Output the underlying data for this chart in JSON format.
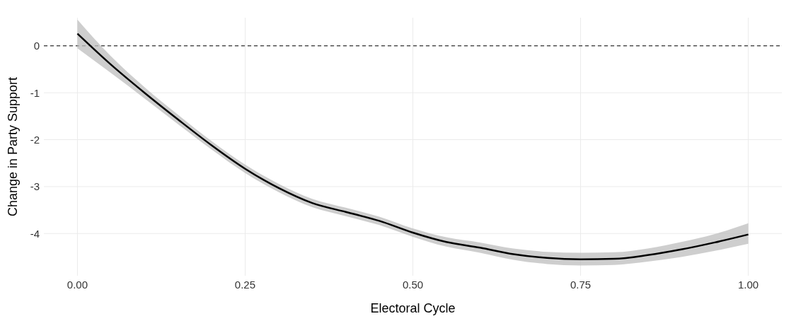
{
  "chart_data": {
    "type": "line",
    "xlabel": "Electoral Cycle",
    "ylabel": "Change in Party Support",
    "x": [
      0,
      0.05,
      0.1,
      0.15,
      0.2,
      0.25,
      0.3,
      0.35,
      0.4,
      0.45,
      0.5,
      0.55,
      0.6,
      0.65,
      0.7,
      0.75,
      0.8,
      0.85,
      0.9,
      0.95,
      1
    ],
    "series": [
      {
        "color": "#000000",
        "values": [
          0.26,
          -0.4,
          -1.0,
          -1.57,
          -2.12,
          -2.62,
          -3.03,
          -3.35,
          -3.54,
          -3.73,
          -3.98,
          -4.18,
          -4.3,
          -4.44,
          -4.52,
          -4.55,
          -4.54,
          -4.46,
          -4.34,
          -4.19,
          -4.02
        ],
        "lower": [
          -0.05,
          -0.58,
          -1.12,
          -1.67,
          -2.21,
          -2.71,
          -3.12,
          -3.44,
          -3.63,
          -3.82,
          -4.07,
          -4.28,
          -4.41,
          -4.56,
          -4.65,
          -4.68,
          -4.67,
          -4.6,
          -4.5,
          -4.37,
          -4.22
        ],
        "upper": [
          0.56,
          -0.22,
          -0.88,
          -1.47,
          -2.03,
          -2.53,
          -2.94,
          -3.26,
          -3.45,
          -3.64,
          -3.89,
          -4.08,
          -4.19,
          -4.32,
          -4.39,
          -4.41,
          -4.4,
          -4.32,
          -4.18,
          -4.01,
          -3.78
        ]
      }
    ],
    "xlim": [
      -0.05,
      1.05
    ],
    "ylim": [
      -4.9,
      0.6
    ],
    "xticks": [
      {
        "value": 0,
        "label": "0.00"
      },
      {
        "value": 0.25,
        "label": "0.25"
      },
      {
        "value": 0.5,
        "label": "0.50"
      },
      {
        "value": 0.75,
        "label": "0.75"
      },
      {
        "value": 1,
        "label": "1.00"
      }
    ],
    "yticks": [
      -4,
      -3,
      -2,
      -1,
      0
    ],
    "grid": true,
    "line_style": "solid",
    "ref_lines": [
      {
        "axis": "y",
        "value": 0,
        "color": "#000000",
        "line_style": "dashed"
      }
    ]
  }
}
